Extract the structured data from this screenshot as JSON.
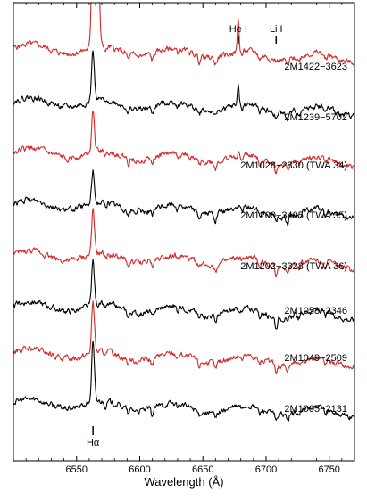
{
  "chart_data": {
    "type": "line",
    "xlabel": "Wavelength (Å)",
    "ylabel": "",
    "xlim": [
      6500,
      6770
    ],
    "x_ticks": [
      6550,
      6600,
      6650,
      6700,
      6750
    ],
    "x_tick_labels": [
      "6550",
      "6600",
      "6650",
      "6700",
      "6750"
    ],
    "grid": false,
    "colors": {
      "red": "#d62728",
      "black": "#000000"
    },
    "line_markers": [
      {
        "label": "He I",
        "x": 6678,
        "position": "top"
      },
      {
        "label": "Li I",
        "x": 6708,
        "position": "top"
      },
      {
        "label": "Hα",
        "x": 6563,
        "position": "bottom"
      }
    ],
    "series": [
      {
        "name": "2M1422−3623",
        "color": "#d62728",
        "halpha_peak": "off-scale",
        "he_i_peak": 0.55,
        "li_i_depth": 0.04
      },
      {
        "name": "2M1239−5702",
        "color": "#000000",
        "halpha_peak": 2.2,
        "he_i_peak": 0.35,
        "li_i_depth": 0.12
      },
      {
        "name": "2M1028−2830 (TWA 34)",
        "color": "#d62728",
        "halpha_peak": 1.9,
        "he_i_peak": 0.05,
        "li_i_depth": 0.2
      },
      {
        "name": "2M1200−3405 (TWA 35)",
        "color": "#000000",
        "halpha_peak": 1.4,
        "he_i_peak": 0.0,
        "li_i_depth": 0.15
      },
      {
        "name": "2M1202−3328 (TWA 36)",
        "color": "#d62728",
        "halpha_peak": 1.9,
        "he_i_peak": 0.0,
        "li_i_depth": 0.2
      },
      {
        "name": "2M1058−2346",
        "color": "#000000",
        "halpha_peak": 1.9,
        "he_i_peak": 0.0,
        "li_i_depth": 0.22
      },
      {
        "name": "2M1049−2509",
        "color": "#d62728",
        "halpha_peak": 2.2,
        "he_i_peak": 0.0,
        "li_i_depth": 0.2
      },
      {
        "name": "2M1005−2131",
        "color": "#000000",
        "halpha_peak": 2.6,
        "he_i_peak": 0.0,
        "li_i_depth": 0.15
      }
    ]
  }
}
